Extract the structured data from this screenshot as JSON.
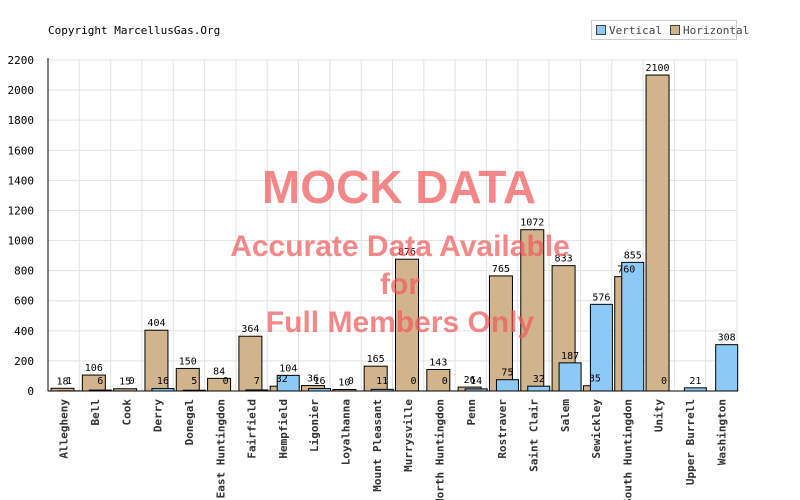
{
  "copyright": "Copyright MarcellusGas.Org",
  "watermark": {
    "line1": "MOCK DATA",
    "line2": "Accurate Data Available",
    "line3": "for",
    "line4": "Full Members Only"
  },
  "colors": {
    "vertical": "#8ccaf5",
    "horizontal": "#d2b48c",
    "grid": "#e2e2e2",
    "axis": "#000000"
  },
  "chart_data": {
    "type": "bar",
    "title": "",
    "xlabel": "",
    "ylabel": "",
    "ylim": [
      0,
      2200
    ],
    "yticks": [
      0,
      200,
      400,
      600,
      800,
      1000,
      1200,
      1400,
      1600,
      1800,
      2000,
      2200
    ],
    "grid": true,
    "legend_position": "top-right",
    "categories": [
      "Allegheny",
      "Bell",
      "Cook",
      "Derry",
      "Donegal",
      "East Huntingdon",
      "Fairfield",
      "Hempfield",
      "Ligonier",
      "Loyalhanna",
      "Mount Pleasant",
      "Murrysville",
      "North Huntingdon",
      "Penn",
      "Rostraver",
      "Saint Clair",
      "Salem",
      "Sewickley",
      "South Huntingdon",
      "Unity",
      "Upper Burrell",
      "Washington"
    ],
    "series": [
      {
        "name": "Vertical",
        "values": [
          1,
          6,
          0,
          16,
          5,
          0,
          7,
          104,
          16,
          0,
          11,
          0,
          0,
          14,
          75,
          32,
          187,
          576,
          855,
          0,
          21,
          308
        ]
      },
      {
        "name": "Horizontal",
        "values": [
          18,
          106,
          15,
          404,
          150,
          84,
          364,
          32,
          36,
          10,
          165,
          876,
          143,
          26,
          765,
          1072,
          833,
          35,
          760,
          2100,
          0,
          0
        ]
      }
    ]
  }
}
